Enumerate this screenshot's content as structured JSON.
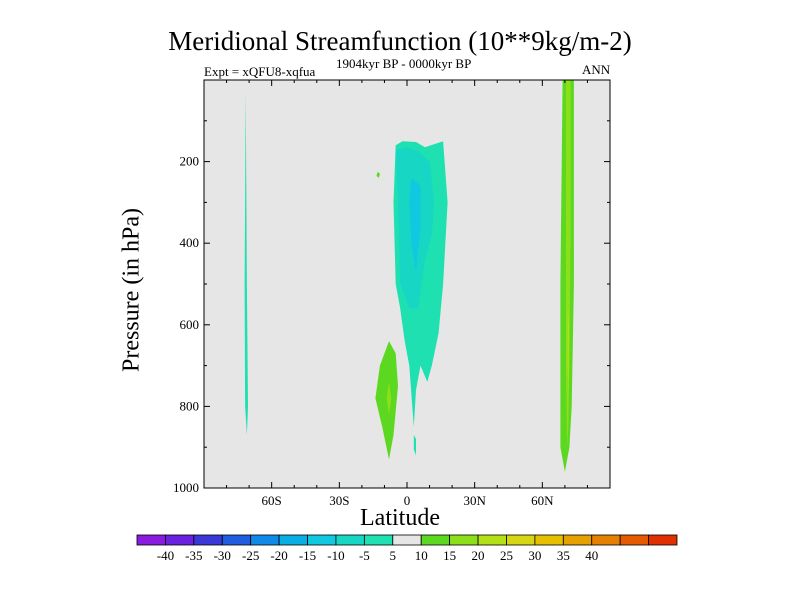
{
  "chart_data": {
    "type": "heatmap",
    "title": "Meridional Streamfunction (10**9kg/m-2)",
    "experiment": "Expt = xQFU8-xqfua",
    "period": "1904kyr BP - 0000kyr BP",
    "season": "ANN",
    "xlabel": "Latitude",
    "ylabel": "Pressure (in hPa)",
    "xlim": [
      -90,
      90
    ],
    "ylim": [
      0,
      1000
    ],
    "y_inverted": true,
    "xticks": [
      {
        "value": -60,
        "label": "60S"
      },
      {
        "value": -30,
        "label": "30S"
      },
      {
        "value": 0,
        "label": "0"
      },
      {
        "value": 30,
        "label": "30N"
      },
      {
        "value": 60,
        "label": "60N"
      }
    ],
    "yticks": [
      {
        "value": 200,
        "label": "200"
      },
      {
        "value": 400,
        "label": "400"
      },
      {
        "value": 600,
        "label": "600"
      },
      {
        "value": 800,
        "label": "800"
      },
      {
        "value": 1000,
        "label": "1000"
      }
    ],
    "background_color": "#e6e6e6",
    "colorbar": {
      "colors": [
        "#8a1be0",
        "#6a22e0",
        "#3b38d8",
        "#1f5ee0",
        "#0f8ae8",
        "#0aaee6",
        "#10c8e0",
        "#18d6c4",
        "#1fe0b0",
        "#e6e6e6",
        "#5cd820",
        "#8ce01a",
        "#b4e018",
        "#d6d614",
        "#e6c000",
        "#e6a000",
        "#e68000",
        "#e65a00",
        "#e03000"
      ],
      "tick_labels": [
        "-40",
        "-35",
        "-30",
        "-25",
        "-20",
        "-15",
        "-10",
        "-5",
        "5",
        "10",
        "15",
        "20",
        "25",
        "30",
        "35",
        "40"
      ]
    },
    "regions": [
      {
        "level": "-5",
        "color": "#1fe0b0",
        "polygon": [
          [
            -71.5,
            30
          ],
          [
            -71,
            500
          ],
          [
            -70.5,
            800
          ],
          [
            -71,
            870
          ],
          [
            -71.8,
            800
          ],
          [
            -72,
            500
          ]
        ]
      },
      {
        "level": "-5",
        "color": "#1fe0b0",
        "polygon": [
          [
            -5,
            160
          ],
          [
            -2,
            150
          ],
          [
            4,
            152
          ],
          [
            8,
            165
          ],
          [
            16,
            150
          ],
          [
            18,
            300
          ],
          [
            16,
            500
          ],
          [
            14,
            620
          ],
          [
            11,
            700
          ],
          [
            9,
            740
          ],
          [
            6,
            700
          ],
          [
            4,
            760
          ],
          [
            3,
            850
          ],
          [
            1,
            700
          ],
          [
            -1,
            640
          ],
          [
            -3,
            560
          ],
          [
            -5,
            500
          ],
          [
            -6,
            300
          ]
        ]
      },
      {
        "level": "-10",
        "color": "#18d6c4",
        "polygon": [
          [
            -5,
            170
          ],
          [
            0,
            165
          ],
          [
            5,
            175
          ],
          [
            10,
            200
          ],
          [
            12,
            300
          ],
          [
            11,
            380
          ],
          [
            8,
            440
          ],
          [
            5,
            560
          ],
          [
            1,
            560
          ],
          [
            -3,
            500
          ],
          [
            -4,
            300
          ]
        ]
      },
      {
        "level": "-10",
        "color": "#10c8e0",
        "polygon": [
          [
            2,
            240
          ],
          [
            6,
            260
          ],
          [
            6,
            360
          ],
          [
            4,
            470
          ],
          [
            2,
            400
          ],
          [
            1,
            300
          ]
        ]
      },
      {
        "level": "-5",
        "color": "#1fe0b0",
        "polygon": [
          [
            3,
            870
          ],
          [
            4,
            880
          ],
          [
            4,
            920
          ],
          [
            3,
            905
          ]
        ]
      },
      {
        "level": "5",
        "color": "#5cd820",
        "polygon": [
          [
            -13,
            225
          ],
          [
            -12,
            230
          ],
          [
            -12.5,
            240
          ],
          [
            -13.5,
            235
          ]
        ]
      },
      {
        "level": "5",
        "color": "#5cd820",
        "polygon": [
          [
            -8,
            640
          ],
          [
            -5,
            670
          ],
          [
            -4,
            750
          ],
          [
            -6,
            870
          ],
          [
            -8,
            930
          ],
          [
            -11,
            850
          ],
          [
            -14,
            780
          ],
          [
            -12,
            700
          ]
        ]
      },
      {
        "level": "10",
        "color": "#8ce01a",
        "polygon": [
          [
            -8,
            740
          ],
          [
            -7,
            780
          ],
          [
            -8,
            820
          ],
          [
            -9,
            780
          ]
        ]
      },
      {
        "level": "5",
        "color": "#5cd820",
        "polygon": [
          [
            69,
            0
          ],
          [
            74,
            0
          ],
          [
            74,
            500
          ],
          [
            73,
            800
          ],
          [
            72,
            900
          ],
          [
            70,
            960
          ],
          [
            68,
            900
          ],
          [
            68,
            500
          ]
        ]
      },
      {
        "level": "10",
        "color": "#8ce01a",
        "polygon": [
          [
            70.5,
            0
          ],
          [
            72.5,
            0
          ],
          [
            72.5,
            400
          ],
          [
            72,
            700
          ],
          [
            71.5,
            850
          ],
          [
            71,
            900
          ],
          [
            70.5,
            700
          ],
          [
            70.5,
            400
          ]
        ]
      },
      {
        "level": "15",
        "color": "#b4e018",
        "polygon": [
          [
            71.3,
            550
          ],
          [
            71.8,
            600
          ],
          [
            71.6,
            760
          ],
          [
            71.2,
            700
          ]
        ]
      }
    ]
  }
}
